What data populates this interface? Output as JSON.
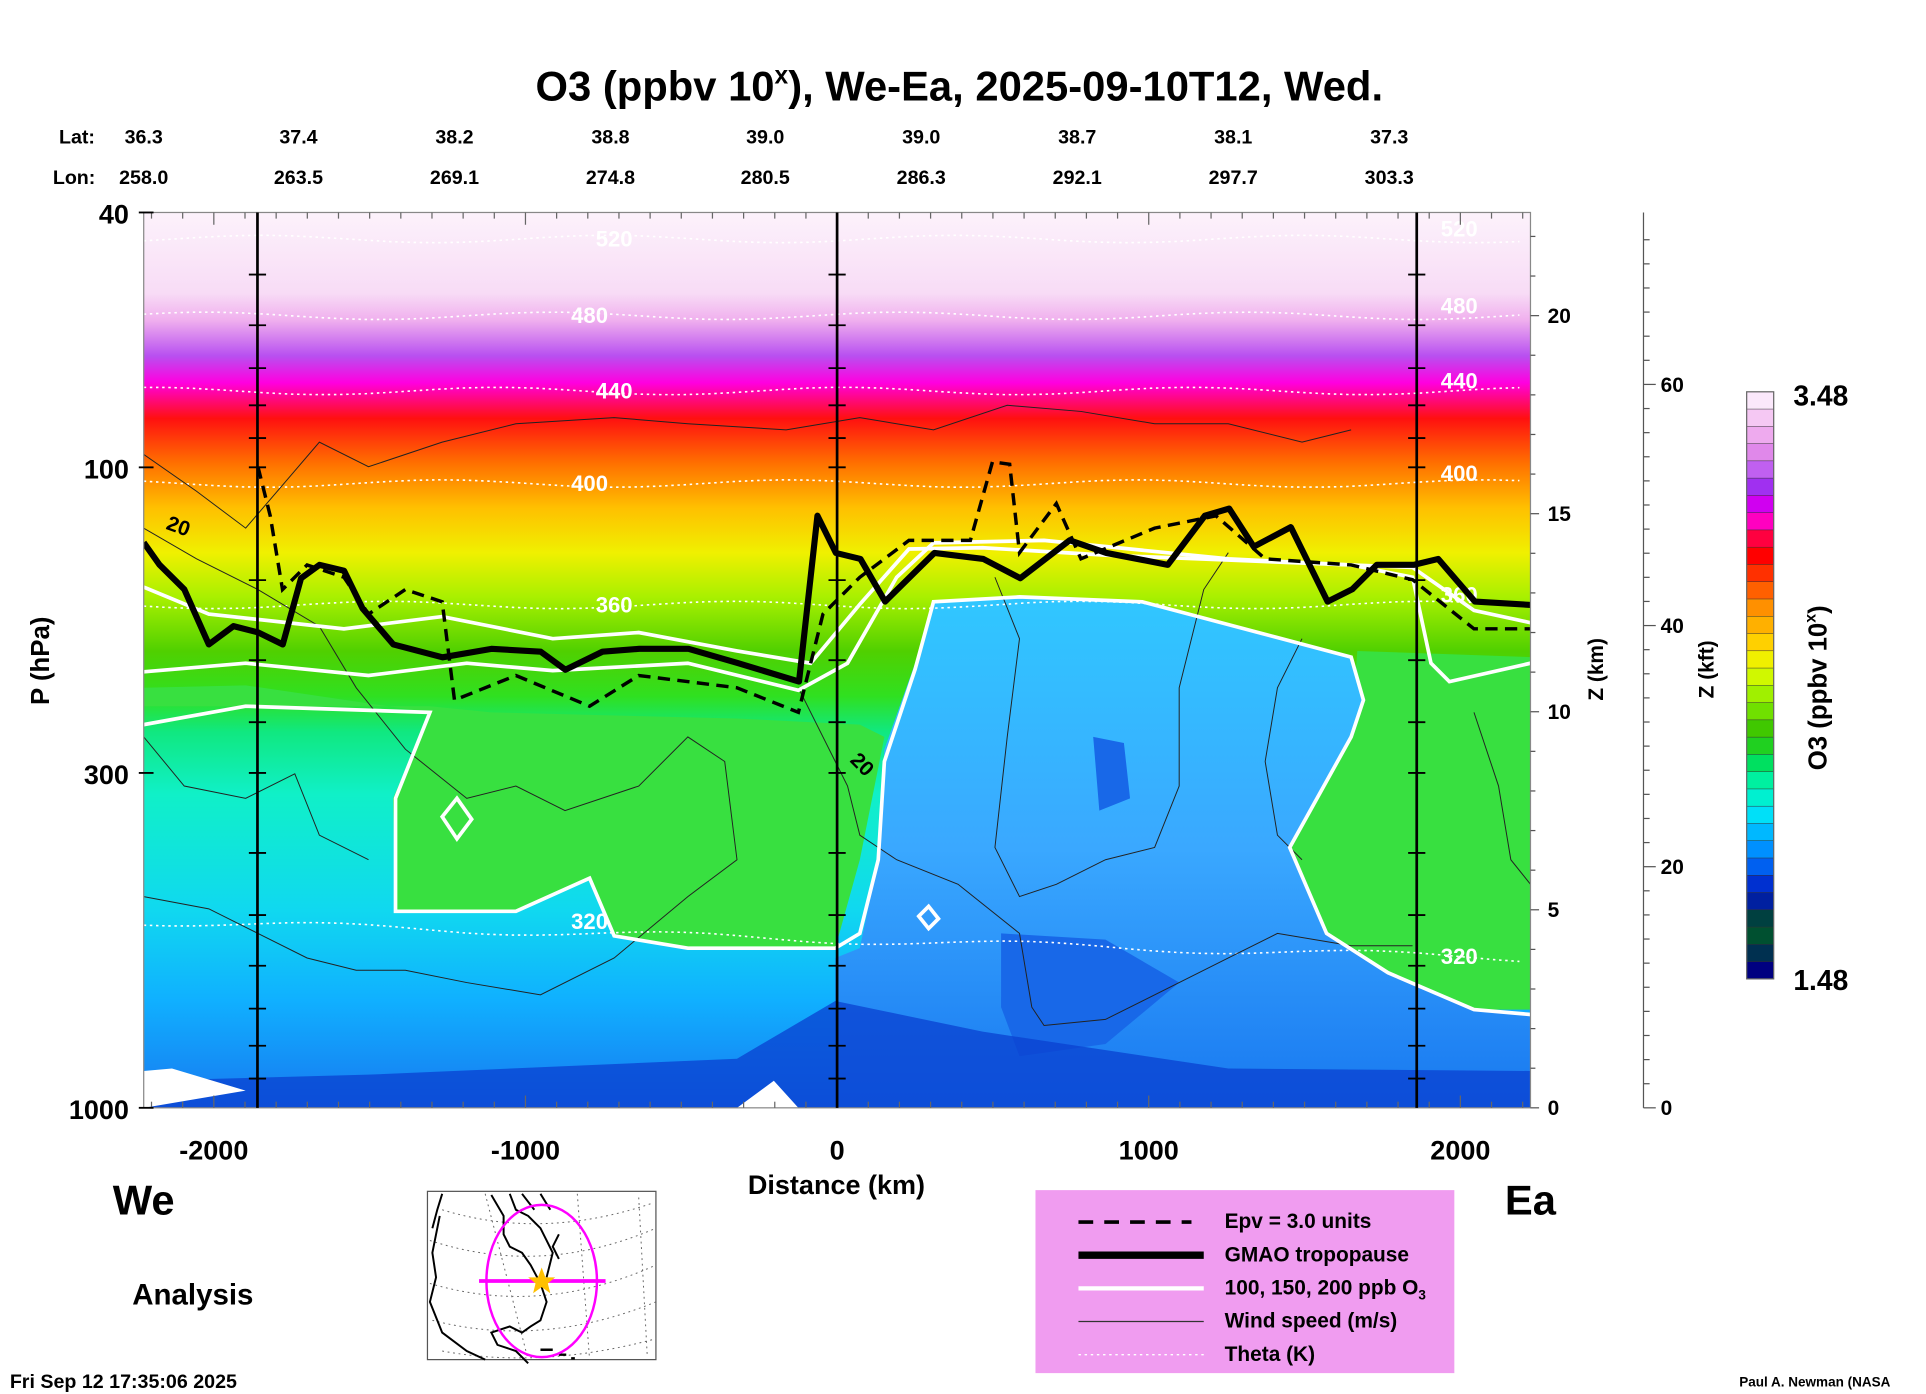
{
  "chart_data": {
    "type": "heatmap",
    "title": "O3 (ppbv 10",
    "title_sup": "x",
    "title_rest": "), We-Ea, 2025-09-10T12, Wed.",
    "lat_label": "Lat:",
    "lon_label": "Lon:",
    "lats": [
      "36.3",
      "37.4",
      "38.2",
      "38.8",
      "39.0",
      "39.0",
      "38.7",
      "38.1",
      "37.3"
    ],
    "lons": [
      "258.0",
      "263.5",
      "269.1",
      "274.8",
      "280.5",
      "286.3",
      "292.1",
      "297.7",
      "303.3"
    ],
    "xlabel": "Distance (km)",
    "ylabel": "P (hPa)",
    "xlim": [
      -2225,
      2225
    ],
    "ylim_hpa": [
      1000,
      40
    ],
    "x_ticks": [
      -2000,
      -1000,
      0,
      1000,
      2000
    ],
    "x_tick_labels": [
      "-2000",
      "-1000",
      "0",
      "1000",
      "2000"
    ],
    "y_ticks": [
      40,
      100,
      300,
      1000
    ],
    "y_tick_labels": [
      "40",
      "100",
      "300",
      "1000"
    ],
    "z_km_label": "Z (km)",
    "z_km_ticks": [
      "0",
      "5",
      "10",
      "15",
      "20"
    ],
    "z_kft_label": "Z (kft)",
    "z_kft_ticks": [
      "0",
      "20",
      "40",
      "60"
    ],
    "profile_distances_km": [
      -1860,
      0,
      1860
    ],
    "colorbar": {
      "label": "O3 (ppbv 10",
      "label_sup": "x",
      "label_end": ")",
      "max": "3.48",
      "min": "1.48",
      "colors": [
        "#fbe8fb",
        "#f5c8f3",
        "#eeaaee",
        "#e088ea",
        "#c060f0",
        "#a030f0",
        "#d000f0",
        "#ff00c0",
        "#ff0040",
        "#ff0000",
        "#ff3000",
        "#ff6000",
        "#ff9000",
        "#ffb000",
        "#ffd000",
        "#f0f000",
        "#d0f800",
        "#a0f000",
        "#70e000",
        "#40c800",
        "#20d020",
        "#00e060",
        "#00f0a0",
        "#00f0d0",
        "#00e0f8",
        "#00b8ff",
        "#0090ff",
        "#0060f0",
        "#0030d0",
        "#0020a0",
        "#004040",
        "#005030",
        "#003050",
        "#000080"
      ]
    },
    "tropopause": {
      "distance_km": [
        -2225,
        -2174,
        -2095,
        -2016,
        -1937,
        -1858,
        -1779,
        -1720,
        -1661,
        -1582,
        -1523,
        -1424,
        -1266,
        -1109,
        -951,
        -872,
        -753,
        -635,
        -477,
        -320,
        -122,
        -63,
        -4,
        75,
        154,
        312,
        469,
        588,
        746,
        864,
        1061,
        1180,
        1258,
        1337,
        1456,
        1574,
        1653,
        1732,
        1850,
        1929,
        2047,
        2229
      ],
      "pressure_hpa": [
        131,
        142,
        155,
        189,
        177,
        181,
        189,
        149,
        142,
        145,
        166,
        189,
        198,
        192,
        194,
        207,
        194,
        192,
        192,
        202,
        216,
        119,
        136,
        139,
        162,
        136,
        139,
        149,
        130,
        136,
        142,
        119,
        116,
        133,
        124,
        162,
        155,
        142,
        142,
        139,
        162,
        164
      ]
    },
    "theta_contours": [
      {
        "value": "520",
        "pressure_hpa": 44
      },
      {
        "value": "480",
        "pressure_hpa": 58
      },
      {
        "value": "440",
        "pressure_hpa": 76
      },
      {
        "value": "400",
        "pressure_hpa": 106
      },
      {
        "value": "360",
        "pressure_hpa": 164
      },
      {
        "value": "320",
        "pressure_hpa": 512
      }
    ],
    "wind_labels": [
      "20",
      "20"
    ]
  },
  "labels": {
    "west": "We",
    "east": "Ea",
    "analysis": "Analysis",
    "timestamp": "Fri Sep 12 17:35:06 2025",
    "credit": "Paul A. Newman (NASA"
  },
  "legend": {
    "items": [
      {
        "label": "Epv = 3.0 units",
        "style": "dashed"
      },
      {
        "label": "GMAO tropopause",
        "style": "thick"
      },
      {
        "label": "100, 150, 200 ppb O",
        "sub": "3",
        "style": "white"
      },
      {
        "label": "Wind speed (m/s)",
        "style": "thin"
      },
      {
        "label": "Theta (K)",
        "style": "dotted"
      }
    ],
    "background": "#f09cf0"
  },
  "map": {
    "track_color": "#ff00ff",
    "star_color": "#ffc000"
  }
}
